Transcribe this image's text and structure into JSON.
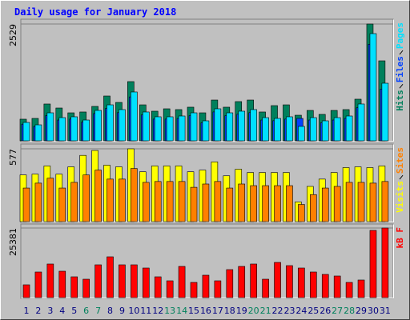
{
  "chart_data": [
    {
      "type": "bar",
      "title": "Daily usage for January 2018",
      "ylim": [
        0,
        2529
      ],
      "yticks": [
        2529
      ],
      "series": [
        {
          "name": "Hits",
          "color": "#00805c",
          "values": [
            468,
            485,
            797,
            710,
            606,
            624,
            745,
            970,
            831,
            1282,
            779,
            641,
            693,
            676,
            728,
            606,
            883,
            728,
            849,
            883,
            624,
            762,
            779,
            554,
            658,
            572,
            658,
            676,
            901,
            2529,
            1732
          ]
        },
        {
          "name": "Files",
          "color": "#0040ff",
          "values": [
            360,
            310,
            545,
            450,
            470,
            405,
            590,
            700,
            610,
            950,
            560,
            470,
            470,
            485,
            545,
            390,
            625,
            545,
            575,
            610,
            450,
            435,
            470,
            485,
            450,
            390,
            450,
            485,
            715,
            2090,
            1120
          ]
        },
        {
          "name": "Pages",
          "color": "#00e0ff",
          "values": [
            398,
            346,
            606,
            502,
            520,
            450,
            658,
            779,
            676,
            1057,
            624,
            520,
            520,
            537,
            606,
            433,
            693,
            606,
            641,
            676,
            502,
            485,
            520,
            312,
            502,
            433,
            502,
            537,
            797,
            2321,
            1247
          ]
        }
      ]
    },
    {
      "type": "bar",
      "ylim": [
        0,
        577
      ],
      "yticks": [
        577
      ],
      "series": [
        {
          "name": "Visits",
          "color": "#ffff00",
          "values": [
            370,
            376,
            441,
            376,
            434,
            525,
            564,
            447,
            434,
            577,
            395,
            441,
            441,
            441,
            395,
            408,
            473,
            363,
            415,
            389,
            389,
            389,
            389,
            156,
            279,
            337,
            389,
            428,
            434,
            428,
            441
          ]
        },
        {
          "name": "Sites",
          "color": "#ff8000",
          "values": [
            266,
            305,
            344,
            266,
            311,
            370,
            408,
            337,
            337,
            421,
            311,
            318,
            318,
            318,
            272,
            298,
            318,
            266,
            298,
            285,
            285,
            285,
            285,
            136,
            214,
            266,
            279,
            311,
            311,
            305,
            318
          ]
        }
      ]
    },
    {
      "type": "bar",
      "ylim": [
        0,
        25381
      ],
      "yticks": [
        25381
      ],
      "categories": [
        "1",
        "2",
        "3",
        "4",
        "5",
        "6",
        "7",
        "8",
        "9",
        "10",
        "11",
        "12",
        "13",
        "14",
        "15",
        "16",
        "17",
        "18",
        "19",
        "20",
        "21",
        "22",
        "23",
        "24",
        "25",
        "26",
        "27",
        "28",
        "29",
        "30",
        "31"
      ],
      "category_colors": [
        "#000080",
        "#000080",
        "#000080",
        "#000080",
        "#000080",
        "#00805c",
        "#00805c",
        "#000080",
        "#000080",
        "#000080",
        "#000080",
        "#000080",
        "#00805c",
        "#00805c",
        "#000080",
        "#000080",
        "#000080",
        "#000080",
        "#000080",
        "#00805c",
        "#00805c",
        "#000080",
        "#000080",
        "#000080",
        "#000080",
        "#000080",
        "#00805c",
        "#00805c",
        "#000080",
        "#000080",
        "#000080"
      ],
      "series": [
        {
          "name": "kB F",
          "color": "#ff0000",
          "values": [
            4668,
            9335,
            12252,
            9627,
            7585,
            6710,
            11960,
            14878,
            11960,
            11960,
            10793,
            7585,
            6126,
            11376,
            5543,
            8168,
            6126,
            10210,
            11376,
            12252,
            6710,
            12835,
            11668,
            10793,
            9335,
            8460,
            7877,
            5543,
            6418,
            24506,
            25381
          ]
        }
      ]
    }
  ]
}
